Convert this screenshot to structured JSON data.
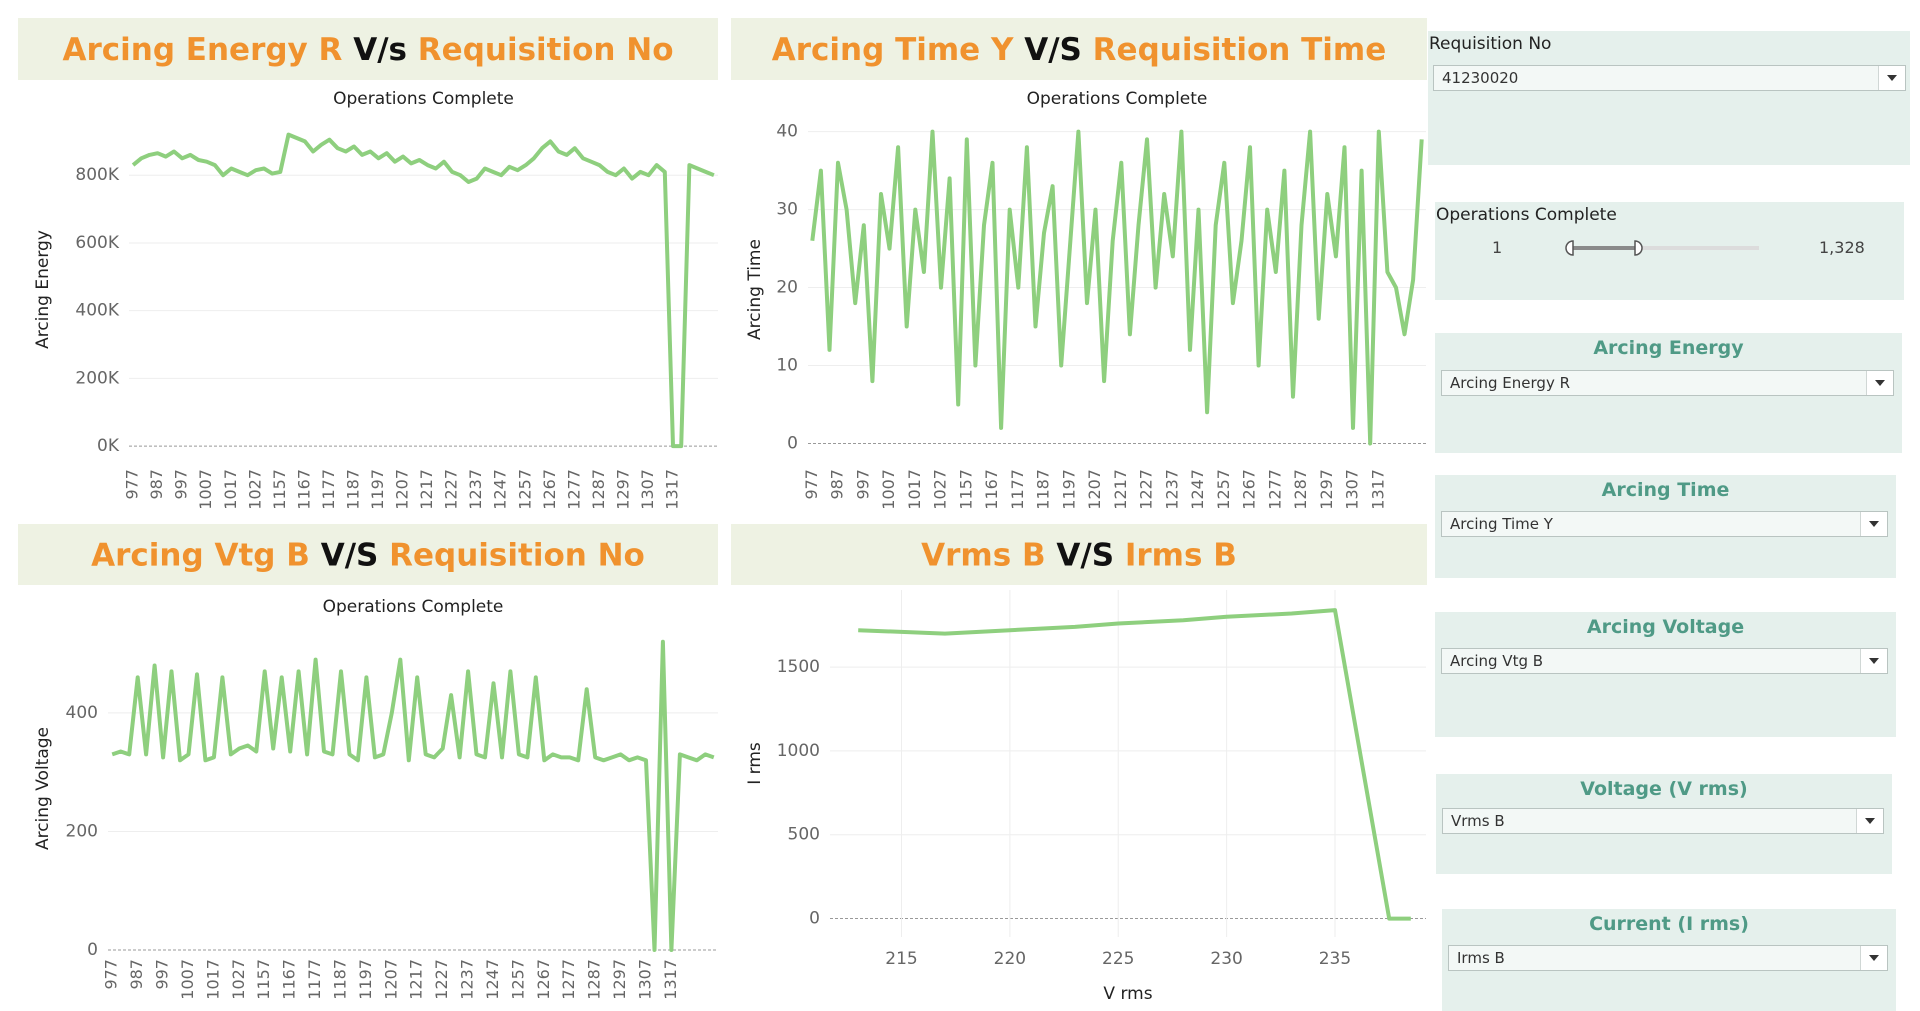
{
  "chart_data": [
    {
      "type": "line",
      "title_parts": [
        {
          "text": "Arcing Energy R",
          "color": "#f0922e"
        },
        {
          "text": "V/s",
          "color": "#111111"
        },
        {
          "text": "Requisition No",
          "color": "#f0922e"
        }
      ],
      "subtitle": "Operations Complete",
      "y_label": "Arcing Energy",
      "color": "#8ecf7e",
      "grid": true,
      "ylim": [
        -50000,
        975000
      ],
      "yticks": [
        {
          "value": 0,
          "label": "0K"
        },
        {
          "value": 200000,
          "label": "200K"
        },
        {
          "value": 400000,
          "label": "400K"
        },
        {
          "value": 600000,
          "label": "600K"
        },
        {
          "value": 800000,
          "label": "800K"
        }
      ],
      "categories": [
        "977",
        null,
        null,
        "987",
        null,
        null,
        "997",
        null,
        null,
        "1007",
        null,
        null,
        "1017",
        null,
        null,
        "1027",
        null,
        null,
        "1157",
        null,
        null,
        "1167",
        null,
        null,
        "1177",
        null,
        null,
        "1187",
        null,
        null,
        "1197",
        null,
        null,
        "1207",
        null,
        null,
        "1217",
        null,
        null,
        "1227",
        null,
        null,
        "1237",
        null,
        null,
        "1247",
        null,
        null,
        "1257",
        null,
        null,
        "1267",
        null,
        null,
        "1277",
        null,
        null,
        "1287",
        null,
        null,
        "1297",
        null,
        null,
        "1307",
        null,
        null,
        "1317",
        null,
        null,
        null,
        null,
        null
      ],
      "values": [
        830000,
        850000,
        860000,
        865000,
        855000,
        870000,
        850000,
        860000,
        845000,
        840000,
        830000,
        800000,
        820000,
        810000,
        800000,
        815000,
        820000,
        805000,
        810000,
        920000,
        910000,
        900000,
        870000,
        890000,
        905000,
        880000,
        870000,
        885000,
        860000,
        870000,
        850000,
        865000,
        840000,
        855000,
        835000,
        845000,
        830000,
        820000,
        840000,
        810000,
        800000,
        780000,
        790000,
        820000,
        810000,
        800000,
        825000,
        815000,
        830000,
        850000,
        880000,
        900000,
        870000,
        860000,
        880000,
        850000,
        840000,
        830000,
        810000,
        800000,
        820000,
        790000,
        810000,
        800000,
        830000,
        810000,
        0,
        0,
        830000,
        820000,
        810000,
        800000
      ]
    },
    {
      "type": "line",
      "title_parts": [
        {
          "text": "Arcing Time Y",
          "color": "#f0922e"
        },
        {
          "text": "V/S",
          "color": "#111111"
        },
        {
          "text": "Requisition Time",
          "color": "#f0922e"
        }
      ],
      "subtitle": "Operations Complete",
      "y_label": "Arcing Time",
      "color": "#8ecf7e",
      "grid": true,
      "ylim": [
        -2.5,
        42
      ],
      "yticks": [
        0,
        10,
        20,
        30,
        40
      ],
      "categories": [
        "977",
        null,
        null,
        "987",
        null,
        null,
        "997",
        null,
        null,
        "1007",
        null,
        null,
        "1017",
        null,
        null,
        "1027",
        null,
        null,
        "1157",
        null,
        null,
        "1167",
        null,
        null,
        "1177",
        null,
        null,
        "1187",
        null,
        null,
        "1197",
        null,
        null,
        "1207",
        null,
        null,
        "1217",
        null,
        null,
        "1227",
        null,
        null,
        "1237",
        null,
        null,
        "1247",
        null,
        null,
        "1257",
        null,
        null,
        "1267",
        null,
        null,
        "1277",
        null,
        null,
        "1287",
        null,
        null,
        "1297",
        null,
        null,
        "1307",
        null,
        null,
        "1317",
        null,
        null,
        null,
        null,
        null
      ],
      "values": [
        26,
        35,
        12,
        36,
        30,
        18,
        28,
        8,
        32,
        25,
        38,
        15,
        30,
        22,
        40,
        20,
        34,
        5,
        39,
        10,
        28,
        36,
        2,
        30,
        20,
        38,
        15,
        27,
        33,
        10,
        25,
        40,
        18,
        30,
        8,
        26,
        36,
        14,
        28,
        39,
        20,
        32,
        24,
        40,
        12,
        30,
        4,
        28,
        36,
        18,
        26,
        38,
        10,
        30,
        22,
        35,
        6,
        28,
        40,
        16,
        32,
        24,
        38,
        2,
        35,
        0,
        40,
        22,
        20,
        14,
        21,
        39
      ]
    },
    {
      "type": "line",
      "title_parts": [
        {
          "text": "Arcing Vtg B",
          "color": "#f0922e"
        },
        {
          "text": "V/S",
          "color": "#111111"
        },
        {
          "text": "Requisition No",
          "color": "#f0922e"
        }
      ],
      "subtitle": "Operations Complete",
      "y_label": "Arcing Voltage",
      "color": "#8ecf7e",
      "grid": true,
      "ylim": [
        -5,
        550
      ],
      "yticks": [
        0,
        200,
        400
      ],
      "categories": [
        "977",
        null,
        null,
        "987",
        null,
        null,
        "997",
        null,
        null,
        "1007",
        null,
        null,
        "1017",
        null,
        null,
        "1027",
        null,
        null,
        "1157",
        null,
        null,
        "1167",
        null,
        null,
        "1177",
        null,
        null,
        "1187",
        null,
        null,
        "1197",
        null,
        null,
        "1207",
        null,
        null,
        "1217",
        null,
        null,
        "1227",
        null,
        null,
        "1237",
        null,
        null,
        "1247",
        null,
        null,
        "1257",
        null,
        null,
        "1267",
        null,
        null,
        "1277",
        null,
        null,
        "1287",
        null,
        null,
        "1297",
        null,
        null,
        "1307",
        null,
        null,
        "1317",
        null,
        null,
        null,
        null,
        null
      ],
      "values": [
        330,
        335,
        330,
        460,
        330,
        480,
        325,
        470,
        320,
        330,
        465,
        320,
        325,
        460,
        330,
        340,
        345,
        335,
        470,
        340,
        460,
        335,
        470,
        330,
        490,
        335,
        330,
        470,
        330,
        320,
        460,
        325,
        330,
        400,
        490,
        320,
        460,
        330,
        325,
        340,
        430,
        325,
        470,
        330,
        325,
        450,
        325,
        470,
        330,
        325,
        460,
        320,
        330,
        325,
        325,
        320,
        440,
        325,
        320,
        325,
        330,
        320,
        325,
        320,
        0,
        520,
        0,
        330,
        325,
        320,
        330,
        325
      ]
    },
    {
      "type": "line",
      "title_parts": [
        {
          "text": "Vrms B",
          "color": "#f0922e"
        },
        {
          "text": "V/S",
          "color": "#111111"
        },
        {
          "text": "Irms B",
          "color": "#f0922e"
        }
      ],
      "x_label": "V rms",
      "y_label": "I rms",
      "color": "#8ecf7e",
      "grid": true,
      "xlim": [
        211.7,
        239.2
      ],
      "xticks": [
        215,
        220,
        225,
        230,
        235
      ],
      "ylim": [
        -110,
        1960
      ],
      "yticks": [
        0,
        500,
        1000,
        1500
      ],
      "x": [
        213,
        215,
        217,
        220,
        223,
        225,
        228,
        230,
        233,
        235,
        237.5,
        238.5
      ],
      "values": [
        1720,
        1710,
        1700,
        1720,
        1740,
        1760,
        1780,
        1800,
        1820,
        1840,
        0,
        0
      ]
    }
  ],
  "filters": {
    "requisition": {
      "label": "Requisition No",
      "value": "41230020"
    },
    "operations": {
      "label": "Operations Complete",
      "min": 1,
      "max": "1,328"
    },
    "selectors": [
      {
        "title": "Arcing Energy",
        "value": "Arcing Energy R"
      },
      {
        "title": "Arcing Time",
        "value": "Arcing Time Y"
      },
      {
        "title": "Arcing Voltage",
        "value": "Arcing Vtg B"
      },
      {
        "title": "Voltage (V rms)",
        "value": "Vrms B"
      },
      {
        "title": "Current (I rms)",
        "value": "Irms B"
      }
    ]
  }
}
